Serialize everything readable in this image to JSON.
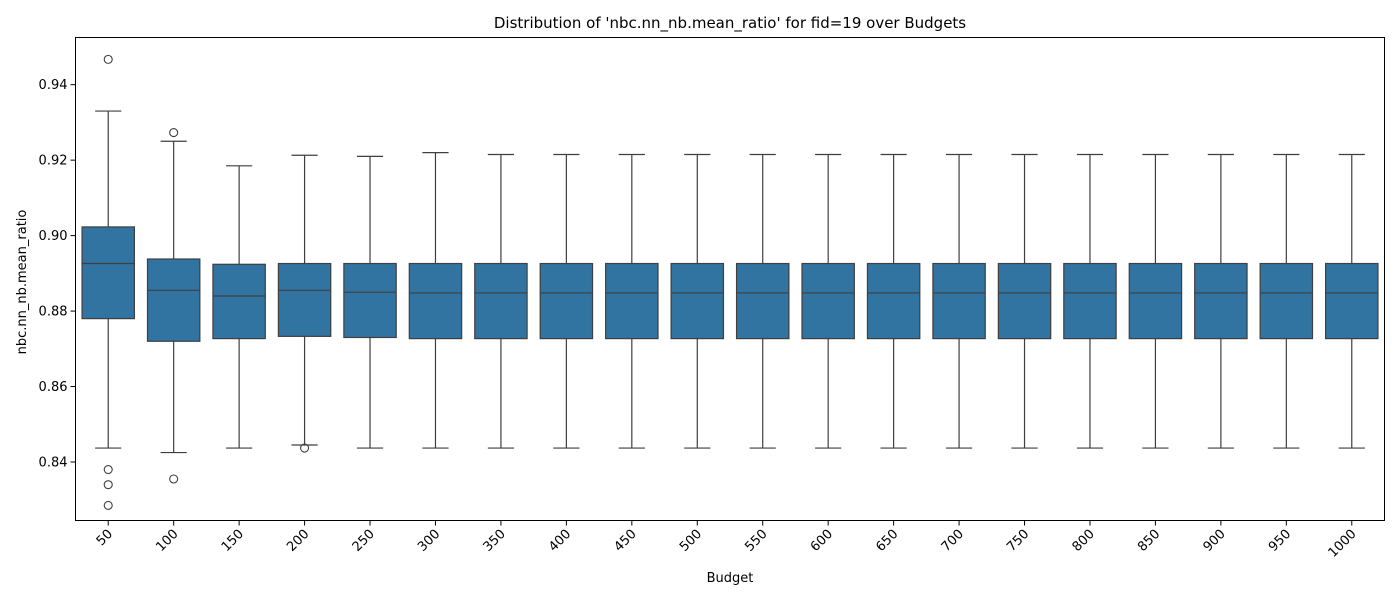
{
  "chart_data": {
    "type": "box",
    "title": "Distribution of 'nbc.nn_nb.mean_ratio' for fid=19 over Budgets",
    "xlabel": "Budget",
    "ylabel": "nbc.nn_nb.mean_ratio",
    "ylim": [
      0.8245,
      0.9525
    ],
    "yticks": [
      "0.84",
      "0.86",
      "0.88",
      "0.90",
      "0.92",
      "0.94"
    ],
    "grid": false,
    "colors": {
      "box": "#3274a1",
      "line": "#3f3f3f",
      "axis": "#000000"
    },
    "categories": [
      "50",
      "100",
      "150",
      "200",
      "250",
      "300",
      "350",
      "400",
      "450",
      "500",
      "550",
      "600",
      "650",
      "700",
      "750",
      "800",
      "850",
      "900",
      "950",
      "1000"
    ],
    "boxes": [
      {
        "whislo": 0.8437,
        "q1": 0.878,
        "med": 0.8926,
        "q3": 0.9023,
        "whishi": 0.933,
        "fliers": [
          0.9467,
          0.838,
          0.834,
          0.8285
        ]
      },
      {
        "whislo": 0.8425,
        "q1": 0.872,
        "med": 0.8855,
        "q3": 0.8938,
        "whishi": 0.925,
        "fliers": [
          0.9273,
          0.8355
        ]
      },
      {
        "whislo": 0.8437,
        "q1": 0.8727,
        "med": 0.884,
        "q3": 0.8924,
        "whishi": 0.9185,
        "fliers": []
      },
      {
        "whislo": 0.8445,
        "q1": 0.8733,
        "med": 0.8855,
        "q3": 0.8926,
        "whishi": 0.9213,
        "fliers": [
          0.8437
        ]
      },
      {
        "whislo": 0.8437,
        "q1": 0.873,
        "med": 0.885,
        "q3": 0.8926,
        "whishi": 0.921,
        "fliers": []
      },
      {
        "whislo": 0.8437,
        "q1": 0.8727,
        "med": 0.8848,
        "q3": 0.8926,
        "whishi": 0.922,
        "fliers": []
      },
      {
        "whislo": 0.8437,
        "q1": 0.8727,
        "med": 0.8848,
        "q3": 0.8926,
        "whishi": 0.9215,
        "fliers": []
      },
      {
        "whislo": 0.8437,
        "q1": 0.8727,
        "med": 0.8848,
        "q3": 0.8926,
        "whishi": 0.9215,
        "fliers": []
      },
      {
        "whislo": 0.8437,
        "q1": 0.8727,
        "med": 0.8848,
        "q3": 0.8926,
        "whishi": 0.9215,
        "fliers": []
      },
      {
        "whislo": 0.8437,
        "q1": 0.8727,
        "med": 0.8848,
        "q3": 0.8926,
        "whishi": 0.9215,
        "fliers": []
      },
      {
        "whislo": 0.8437,
        "q1": 0.8727,
        "med": 0.8848,
        "q3": 0.8926,
        "whishi": 0.9215,
        "fliers": []
      },
      {
        "whislo": 0.8437,
        "q1": 0.8727,
        "med": 0.8848,
        "q3": 0.8926,
        "whishi": 0.9215,
        "fliers": []
      },
      {
        "whislo": 0.8437,
        "q1": 0.8727,
        "med": 0.8848,
        "q3": 0.8926,
        "whishi": 0.9215,
        "fliers": []
      },
      {
        "whislo": 0.8437,
        "q1": 0.8727,
        "med": 0.8848,
        "q3": 0.8926,
        "whishi": 0.9215,
        "fliers": []
      },
      {
        "whislo": 0.8437,
        "q1": 0.8727,
        "med": 0.8848,
        "q3": 0.8926,
        "whishi": 0.9215,
        "fliers": []
      },
      {
        "whislo": 0.8437,
        "q1": 0.8727,
        "med": 0.8848,
        "q3": 0.8926,
        "whishi": 0.9215,
        "fliers": []
      },
      {
        "whislo": 0.8437,
        "q1": 0.8727,
        "med": 0.8848,
        "q3": 0.8926,
        "whishi": 0.9215,
        "fliers": []
      },
      {
        "whislo": 0.8437,
        "q1": 0.8727,
        "med": 0.8848,
        "q3": 0.8926,
        "whishi": 0.9215,
        "fliers": []
      },
      {
        "whislo": 0.8437,
        "q1": 0.8727,
        "med": 0.8848,
        "q3": 0.8926,
        "whishi": 0.9215,
        "fliers": []
      },
      {
        "whislo": 0.8437,
        "q1": 0.8727,
        "med": 0.8848,
        "q3": 0.8926,
        "whishi": 0.9215,
        "fliers": []
      }
    ]
  }
}
